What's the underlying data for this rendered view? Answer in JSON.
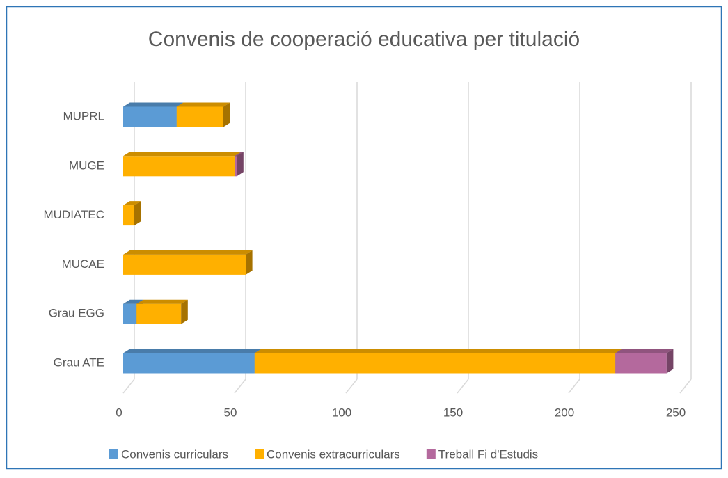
{
  "chart_data": {
    "type": "bar3d_stacked_horizontal",
    "title": "Convenis de cooperació educativa per titulació",
    "categories": [
      "Grau ATE",
      "Grau EGG",
      "MUCAE",
      "MUDIATEC",
      "MUGE",
      "MUPRL"
    ],
    "series": [
      {
        "name": "Convenis curriculars",
        "color": "#5b9bd5",
        "values": [
          59,
          6,
          0,
          0,
          0,
          24
        ]
      },
      {
        "name": "Convenis extracurriculars",
        "color": "#ffb000",
        "values": [
          162,
          20,
          55,
          5,
          50,
          21
        ]
      },
      {
        "name": "Treball Fi d'Estudis",
        "color": "#b4699d",
        "values": [
          23,
          0,
          0,
          0,
          1,
          0
        ]
      }
    ],
    "xlim": [
      0,
      250
    ],
    "xticks": [
      0,
      50,
      100,
      150,
      200,
      250
    ],
    "grid": true,
    "legend": "bottom"
  }
}
